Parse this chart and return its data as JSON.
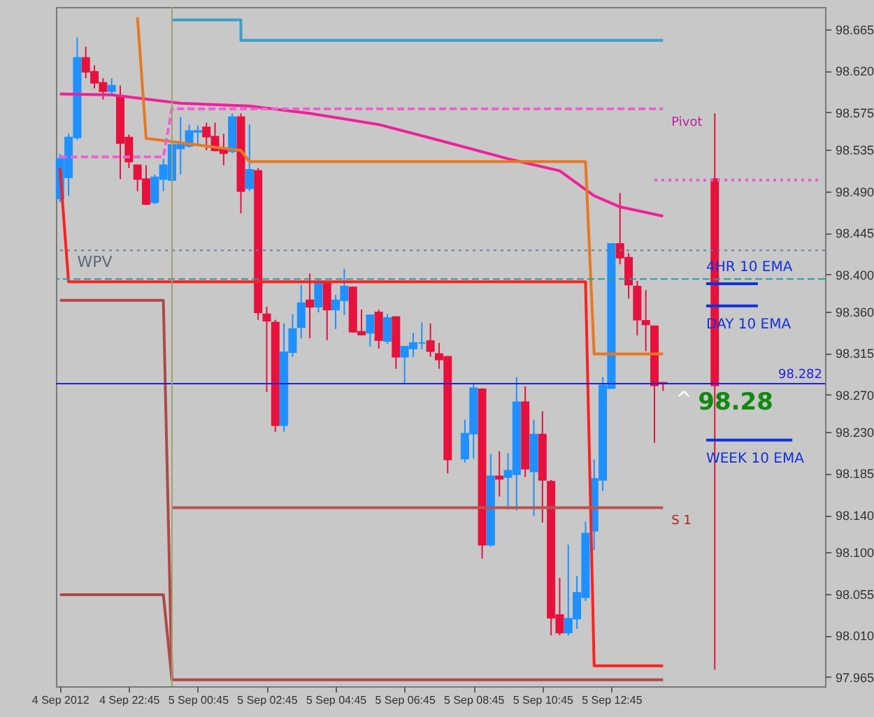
{
  "chart_data": {
    "type": "candlestick",
    "xlim": [
      "2012-09-04T20:38",
      "2012-09-05T18:57"
    ],
    "ylim": [
      97.955,
      98.689
    ],
    "xticks": [
      {
        "value": "2012-09-04T20:45",
        "label": "4 Sep 2012"
      },
      {
        "value": "2012-09-04T22:45",
        "label": "4 Sep 22:45"
      },
      {
        "value": "2012-09-05T00:45",
        "label": "5 Sep 00:45"
      },
      {
        "value": "2012-09-05T02:45",
        "label": "5 Sep 02:45"
      },
      {
        "value": "2012-09-05T04:45",
        "label": "5 Sep 04:45"
      },
      {
        "value": "2012-09-05T06:45",
        "label": "5 Sep 06:45"
      },
      {
        "value": "2012-09-05T08:45",
        "label": "5 Sep 08:45"
      },
      {
        "value": "2012-09-05T10:45",
        "label": "5 Sep 10:45"
      },
      {
        "value": "2012-09-05T12:45",
        "label": "5 Sep 12:45"
      }
    ],
    "yticks": [
      {
        "value": 98.665,
        "label": "98.665"
      },
      {
        "value": 98.62,
        "label": "98.620"
      },
      {
        "value": 98.575,
        "label": "98.575"
      },
      {
        "value": 98.535,
        "label": "98.535"
      },
      {
        "value": 98.49,
        "label": "98.490"
      },
      {
        "value": 98.445,
        "label": "98.445"
      },
      {
        "value": 98.4,
        "label": "98.400"
      },
      {
        "value": 98.36,
        "label": "98.360"
      },
      {
        "value": 98.315,
        "label": "98.315"
      },
      {
        "value": 98.27,
        "label": "98.270"
      },
      {
        "value": 98.23,
        "label": "98.230"
      },
      {
        "value": 98.185,
        "label": "98.185"
      },
      {
        "value": 98.14,
        "label": "98.140"
      },
      {
        "value": 98.1,
        "label": "98.100"
      },
      {
        "value": 98.055,
        "label": "98.055"
      },
      {
        "value": 98.01,
        "label": "98.010"
      },
      {
        "value": 97.965,
        "label": "97.965"
      }
    ],
    "series": [
      {
        "x": [
          "2012-09-04T20:45",
          "2012-09-04T21:00",
          "2012-09-04T21:15",
          "2012-09-04T21:30",
          "2012-09-04T21:45",
          "2012-09-04T22:00",
          "2012-09-04T22:15",
          "2012-09-04T22:30",
          "2012-09-04T22:45",
          "2012-09-04T23:00",
          "2012-09-04T23:15",
          "2012-09-04T23:30",
          "2012-09-04T23:45",
          "2012-09-05T00:00",
          "2012-09-05T00:15",
          "2012-09-05T00:30",
          "2012-09-05T00:45",
          "2012-09-05T01:00",
          "2012-09-05T01:15",
          "2012-09-05T01:30",
          "2012-09-05T01:45",
          "2012-09-05T02:00",
          "2012-09-05T02:15",
          "2012-09-05T02:30",
          "2012-09-05T02:45",
          "2012-09-05T03:00",
          "2012-09-05T03:15",
          "2012-09-05T03:30",
          "2012-09-05T03:45",
          "2012-09-05T04:00",
          "2012-09-05T04:15",
          "2012-09-05T04:30",
          "2012-09-05T04:45",
          "2012-09-05T05:00",
          "2012-09-05T05:15",
          "2012-09-05T05:30",
          "2012-09-05T05:45",
          "2012-09-05T06:00",
          "2012-09-05T06:15",
          "2012-09-05T06:30",
          "2012-09-05T06:45",
          "2012-09-05T07:00",
          "2012-09-05T07:15",
          "2012-09-05T07:30",
          "2012-09-05T07:45",
          "2012-09-05T08:00",
          "2012-09-05T08:30",
          "2012-09-05T08:45",
          "2012-09-05T09:00",
          "2012-09-05T09:15",
          "2012-09-05T09:30",
          "2012-09-05T09:45",
          "2012-09-05T10:00",
          "2012-09-05T10:15",
          "2012-09-05T10:30",
          "2012-09-05T10:45",
          "2012-09-05T11:00",
          "2012-09-05T11:15",
          "2012-09-05T11:30",
          "2012-09-05T11:45",
          "2012-09-05T12:00",
          "2012-09-05T12:15",
          "2012-09-05T12:30",
          "2012-09-05T12:45",
          "2012-09-05T13:00",
          "2012-09-05T13:15",
          "2012-09-05T13:30",
          "2012-09-05T13:45",
          "2012-09-05T14:00",
          "2012-09-05T14:15"
        ],
        "ohlc": [
          [
            98.482,
            98.53,
            98.478,
            98.525
          ],
          [
            98.505,
            98.552,
            98.485,
            98.548
          ],
          [
            98.548,
            98.656,
            98.545,
            98.634
          ],
          [
            98.634,
            98.646,
            98.612,
            98.619
          ],
          [
            98.619,
            98.626,
            98.601,
            98.607
          ],
          [
            98.607,
            98.612,
            98.589,
            98.598
          ],
          [
            98.598,
            98.612,
            98.595,
            98.604
          ],
          [
            98.592,
            98.604,
            98.503,
            98.542
          ],
          [
            98.548,
            98.551,
            98.515,
            98.522
          ],
          [
            98.518,
            98.519,
            98.49,
            98.503
          ],
          [
            98.503,
            98.518,
            98.475,
            98.476
          ],
          [
            98.478,
            98.508,
            98.476,
            98.505
          ],
          [
            98.503,
            98.525,
            98.49,
            98.518
          ],
          [
            98.502,
            98.545,
            98.5,
            98.54
          ],
          [
            98.536,
            98.57,
            98.508,
            98.54
          ],
          [
            98.539,
            98.562,
            98.537,
            98.555
          ],
          [
            98.554,
            98.561,
            98.54,
            98.555
          ],
          [
            98.559,
            98.564,
            98.534,
            98.549
          ],
          [
            98.549,
            98.564,
            98.533,
            98.534
          ],
          [
            98.536,
            98.552,
            98.518,
            98.531
          ],
          [
            98.533,
            98.574,
            98.531,
            98.57
          ],
          [
            98.57,
            98.574,
            98.466,
            98.49
          ],
          [
            98.493,
            98.562,
            98.49,
            98.513
          ],
          [
            98.512,
            98.515,
            98.351,
            98.359
          ],
          [
            98.357,
            98.365,
            98.273,
            98.35
          ],
          [
            98.348,
            98.351,
            98.23,
            98.237
          ],
          [
            98.237,
            98.347,
            98.23,
            98.316
          ],
          [
            98.316,
            98.357,
            98.311,
            98.341
          ],
          [
            98.343,
            98.389,
            98.331,
            98.369
          ],
          [
            98.372,
            98.401,
            98.331,
            98.365
          ],
          [
            98.365,
            98.396,
            98.359,
            98.392
          ],
          [
            98.392,
            98.393,
            98.329,
            98.362
          ],
          [
            98.362,
            98.378,
            98.341,
            98.372
          ],
          [
            98.372,
            98.406,
            98.356,
            98.387
          ],
          [
            98.386,
            98.387,
            98.337,
            98.338
          ],
          [
            98.338,
            98.362,
            98.334,
            98.335
          ],
          [
            98.337,
            98.356,
            98.322,
            98.356
          ],
          [
            98.359,
            98.362,
            98.32,
            98.329
          ],
          [
            98.328,
            98.357,
            98.325,
            98.353
          ],
          [
            98.354,
            98.354,
            98.298,
            98.311
          ],
          [
            98.311,
            98.322,
            98.282,
            98.322
          ],
          [
            98.32,
            98.337,
            98.311,
            98.326
          ],
          [
            98.326,
            98.348,
            98.319,
            98.326
          ],
          [
            98.328,
            98.347,
            98.311,
            98.317
          ],
          [
            98.314,
            98.326,
            98.298,
            98.308
          ],
          [
            98.311,
            98.311,
            98.185,
            98.2
          ],
          [
            98.201,
            98.243,
            98.197,
            98.228
          ],
          [
            98.228,
            98.283,
            98.201,
            98.277
          ],
          [
            98.276,
            98.277,
            98.093,
            98.108
          ],
          [
            98.108,
            98.206,
            98.106,
            98.182
          ],
          [
            98.182,
            98.209,
            98.16,
            98.179
          ],
          [
            98.181,
            98.207,
            98.146,
            98.188
          ],
          [
            98.184,
            98.289,
            98.145,
            98.262
          ],
          [
            98.262,
            98.279,
            98.181,
            98.19
          ],
          [
            98.187,
            98.243,
            98.139,
            98.227
          ],
          [
            98.227,
            98.252,
            98.132,
            98.178
          ],
          [
            98.176,
            98.178,
            98.01,
            98.029
          ],
          [
            98.032,
            98.072,
            98.01,
            98.013
          ],
          [
            98.013,
            98.108,
            98.01,
            98.028
          ],
          [
            98.028,
            98.074,
            98.017,
            98.056
          ],
          [
            98.051,
            98.133,
            98.047,
            98.12
          ],
          [
            98.123,
            98.2,
            98.102,
            98.179
          ],
          [
            98.178,
            98.289,
            98.166,
            98.28
          ],
          [
            98.277,
            98.433,
            98.277,
            98.433
          ],
          [
            98.433,
            98.488,
            98.411,
            98.418
          ],
          [
            98.418,
            98.423,
            98.374,
            98.389
          ],
          [
            98.387,
            98.393,
            98.334,
            98.351
          ],
          [
            98.35,
            98.383,
            98.317,
            98.346
          ],
          [
            98.344,
            98.344,
            98.218,
            98.28
          ],
          [
            98.283,
            98.283,
            98.274,
            98.282
          ]
        ],
        "colors": [
          "#1e90ff",
          "#1e90ff",
          "#1e90ff",
          "#e8103c",
          "#e8103c",
          "#e8103c",
          "#1e90ff",
          "#e8103c",
          "#e8103c",
          "#e8103c",
          "#e8103c",
          "#1e90ff",
          "#1e90ff",
          "#1e90ff",
          "#1e90ff",
          "#1e90ff",
          "#1e90ff",
          "#e8103c",
          "#e8103c",
          "#e8103c",
          "#1e90ff",
          "#e8103c",
          "#1e90ff",
          "#e8103c",
          "#e8103c",
          "#e8103c",
          "#1e90ff",
          "#1e90ff",
          "#1e90ff",
          "#e8103c",
          "#1e90ff",
          "#e8103c",
          "#1e90ff",
          "#1e90ff",
          "#e8103c",
          "#e8103c",
          "#1e90ff",
          "#e8103c",
          "#1e90ff",
          "#e8103c",
          "#1e90ff",
          "#1e90ff",
          "#1e90ff",
          "#e8103c",
          "#e8103c",
          "#e8103c",
          "#1e90ff",
          "#1e90ff",
          "#e8103c",
          "#1e90ff",
          "#e8103c",
          "#1e90ff",
          "#1e90ff",
          "#e8103c",
          "#1e90ff",
          "#e8103c",
          "#e8103c",
          "#e8103c",
          "#1e90ff",
          "#1e90ff",
          "#1e90ff",
          "#1e90ff",
          "#1e90ff",
          "#1e90ff",
          "#e8103c",
          "#e8103c",
          "#e8103c",
          "#e8103c",
          "#e8103c",
          "#e8103c"
        ]
      },
      {
        "x": [
          "2012-09-05T15:45"
        ],
        "ohlc": [
          [
            98.503,
            98.574,
            97.973,
            98.28
          ]
        ],
        "colors": [
          "#e8103c"
        ]
      },
      {
        "type": "line",
        "color": "#f0209a",
        "x": [
          "2012-09-04T20:45",
          "2012-09-04T22:15",
          "2012-09-05T00:15",
          "2012-09-05T02:15",
          "2012-09-05T04:00",
          "2012-09-05T06:00",
          "2012-09-05T07:45",
          "2012-09-05T09:45",
          "2012-09-05T11:15",
          "2012-09-05T12:15",
          "2012-09-05T13:00",
          "2012-09-05T14:15"
        ],
        "values": [
          98.595,
          98.594,
          98.585,
          98.582,
          98.574,
          98.562,
          98.545,
          98.525,
          98.512,
          98.485,
          98.473,
          98.463
        ]
      },
      {
        "type": "line",
        "color": "#e87820",
        "x": [
          "2012-09-04T23:00",
          "2012-09-04T23:15",
          "2012-09-05T02:00",
          "2012-09-05T02:15",
          "2012-09-05T12:00",
          "2012-09-05T12:15",
          "2012-09-05T14:15"
        ],
        "values": [
          98.678,
          98.547,
          98.534,
          98.522,
          98.522,
          98.314,
          98.314
        ]
      },
      {
        "type": "line",
        "color": "#ff2020",
        "x": [
          "2012-09-04T20:45",
          "2012-09-04T21:00",
          "2012-09-05T12:00",
          "2012-09-05T12:15",
          "2012-09-05T14:15"
        ],
        "values": [
          98.515,
          98.392,
          98.392,
          97.977,
          97.977
        ]
      },
      {
        "type": "line",
        "color": "#b04848",
        "x": [
          "2012-09-04T20:45",
          "2012-09-04T23:45",
          "2012-09-05T00:00",
          "2012-09-05T14:15"
        ],
        "values": [
          98.372,
          98.372,
          97.962,
          97.962
        ]
      },
      {
        "type": "line",
        "color": "#b04848",
        "x": [
          "2012-09-04T20:45",
          "2012-09-04T23:45",
          "2012-09-05T00:00"
        ],
        "values": [
          98.054,
          98.054,
          97.962
        ]
      },
      {
        "type": "line",
        "color": "#c05050",
        "x": [
          "2012-09-05T00:00",
          "2012-09-05T14:15"
        ],
        "values": [
          98.148,
          98.148
        ]
      },
      {
        "type": "line",
        "color": "#f060d0",
        "line_style": "dashed",
        "x": [
          "2012-09-04T20:45",
          "2012-09-04T23:45",
          "2012-09-05T00:00",
          "2012-09-05T14:15"
        ],
        "values": [
          98.527,
          98.527,
          98.579,
          98.579
        ]
      },
      {
        "type": "line",
        "color": "#3aa0c8",
        "x": [
          "2012-09-05T00:00",
          "2012-09-05T02:00",
          "2012-09-05T02:00",
          "2012-09-05T14:15"
        ],
        "values": [
          98.675,
          98.675,
          98.653,
          98.653
        ]
      },
      {
        "type": "line",
        "color": "#e060d0",
        "line_style": "dotted",
        "x": [
          "2012-09-05T14:00",
          "2012-09-05T18:45"
        ],
        "values": [
          98.502,
          98.502
        ]
      },
      {
        "type": "line",
        "color": "#1030e0",
        "x": [
          "2012-09-05T15:30",
          "2012-09-05T17:00"
        ],
        "values": [
          98.39,
          98.39
        ]
      },
      {
        "type": "line",
        "color": "#1030e0",
        "x": [
          "2012-09-05T15:30",
          "2012-09-05T17:00"
        ],
        "values": [
          98.366,
          98.366
        ]
      },
      {
        "type": "line",
        "color": "#1030e0",
        "x": [
          "2012-09-05T15:30",
          "2012-09-05T18:00"
        ],
        "values": [
          98.221,
          98.221
        ]
      }
    ],
    "ref_lines": [
      {
        "axis": "y",
        "value": 98.426,
        "color": "#6080a0",
        "line_style": "dotted"
      },
      {
        "axis": "y",
        "value": 98.395,
        "color": "#20a0a0",
        "line_style": "dashed"
      },
      {
        "axis": "y",
        "value": 98.282,
        "color": "#2020e0",
        "label": "98.282"
      },
      {
        "axis": "x",
        "value": "2012-09-05T00:00",
        "color": "#a0a070"
      }
    ],
    "annotations": [
      {
        "text": "WPV",
        "x": "2012-09-04T21:15",
        "y": 98.426
      },
      {
        "text": "Pivot",
        "x": "2012-09-05T14:15",
        "y": 98.579
      },
      {
        "text": "S 1",
        "x": "2012-09-05T14:15",
        "y": 98.148
      },
      {
        "text": "4HR 10 EMA",
        "x": "2012-09-05T15:30",
        "y": 98.39
      },
      {
        "text": "DAY 10 EMA",
        "x": "2012-09-05T15:30",
        "y": 98.366
      },
      {
        "text": "WEEK 10 EMA",
        "x": "2012-09-05T15:30",
        "y": 98.221
      },
      {
        "text": "^",
        "x": "2012-09-05T15:45",
        "y": 98.28
      },
      {
        "text": "98.28",
        "x": "2012-09-05T15:45",
        "y": 98.28
      }
    ],
    "grid": false
  }
}
